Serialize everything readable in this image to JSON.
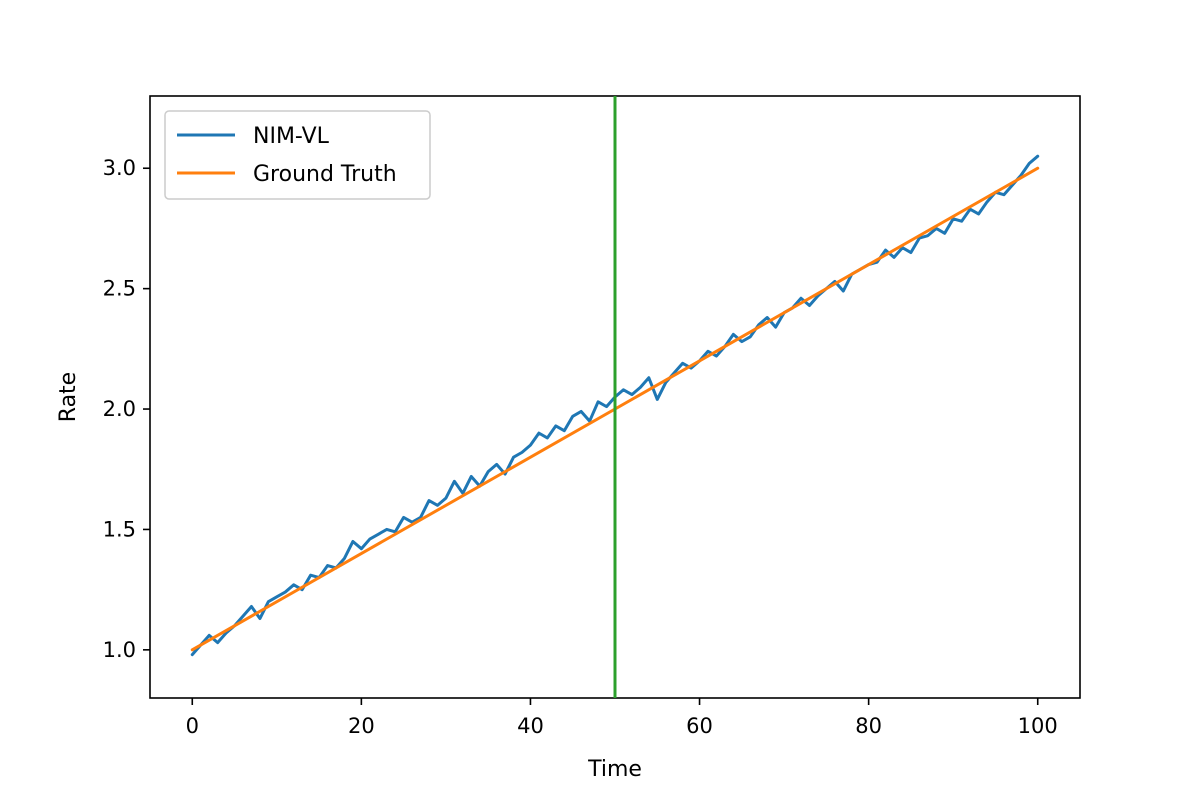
{
  "chart_data": {
    "type": "line",
    "title": "",
    "xlabel": "Time",
    "ylabel": "Rate",
    "xlim": [
      -5,
      105
    ],
    "ylim": [
      0.8,
      3.3
    ],
    "x_ticks": [
      0,
      20,
      40,
      60,
      80,
      100
    ],
    "x_tick_labels": [
      "0",
      "20",
      "40",
      "60",
      "80",
      "100"
    ],
    "y_ticks": [
      1.0,
      1.5,
      2.0,
      2.5,
      3.0
    ],
    "y_tick_labels": [
      "1.0",
      "1.5",
      "2.0",
      "2.5",
      "3.0"
    ],
    "grid": false,
    "legend": {
      "placement": "top-left",
      "entries": [
        "NIM-VL",
        "Ground Truth"
      ]
    },
    "vertical_line": {
      "x": 50,
      "color": "#2ca02c"
    },
    "series": [
      {
        "name": "NIM-VL",
        "color": "#1f77b4",
        "x": [
          0,
          1,
          2,
          3,
          4,
          5,
          6,
          7,
          8,
          9,
          10,
          11,
          12,
          13,
          14,
          15,
          16,
          17,
          18,
          19,
          20,
          21,
          22,
          23,
          24,
          25,
          26,
          27,
          28,
          29,
          30,
          31,
          32,
          33,
          34,
          35,
          36,
          37,
          38,
          39,
          40,
          41,
          42,
          43,
          44,
          45,
          46,
          47,
          48,
          49,
          50,
          51,
          52,
          53,
          54,
          55,
          56,
          57,
          58,
          59,
          60,
          61,
          62,
          63,
          64,
          65,
          66,
          67,
          68,
          69,
          70,
          71,
          72,
          73,
          74,
          75,
          76,
          77,
          78,
          79,
          80,
          81,
          82,
          83,
          84,
          85,
          86,
          87,
          88,
          89,
          90,
          91,
          92,
          93,
          94,
          95,
          96,
          97,
          98,
          99,
          100
        ],
        "y": [
          0.98,
          1.02,
          1.06,
          1.03,
          1.07,
          1.1,
          1.14,
          1.18,
          1.13,
          1.2,
          1.22,
          1.24,
          1.27,
          1.25,
          1.31,
          1.3,
          1.35,
          1.34,
          1.38,
          1.45,
          1.42,
          1.46,
          1.48,
          1.5,
          1.49,
          1.55,
          1.53,
          1.55,
          1.62,
          1.6,
          1.63,
          1.7,
          1.65,
          1.72,
          1.68,
          1.74,
          1.77,
          1.73,
          1.8,
          1.82,
          1.85,
          1.9,
          1.88,
          1.93,
          1.91,
          1.97,
          1.99,
          1.95,
          2.03,
          2.01,
          2.05,
          2.08,
          2.06,
          2.09,
          2.13,
          2.04,
          2.11,
          2.15,
          2.19,
          2.17,
          2.2,
          2.24,
          2.22,
          2.26,
          2.31,
          2.28,
          2.3,
          2.35,
          2.38,
          2.34,
          2.4,
          2.42,
          2.46,
          2.43,
          2.47,
          2.5,
          2.53,
          2.49,
          2.56,
          2.58,
          2.6,
          2.61,
          2.66,
          2.63,
          2.67,
          2.65,
          2.71,
          2.72,
          2.75,
          2.73,
          2.79,
          2.78,
          2.83,
          2.81,
          2.86,
          2.9,
          2.89,
          2.93,
          2.97,
          3.02,
          3.05
        ]
      },
      {
        "name": "Ground Truth",
        "color": "#ff7f0e",
        "x": [
          0,
          100
        ],
        "y": [
          1.0,
          3.0
        ]
      }
    ]
  }
}
